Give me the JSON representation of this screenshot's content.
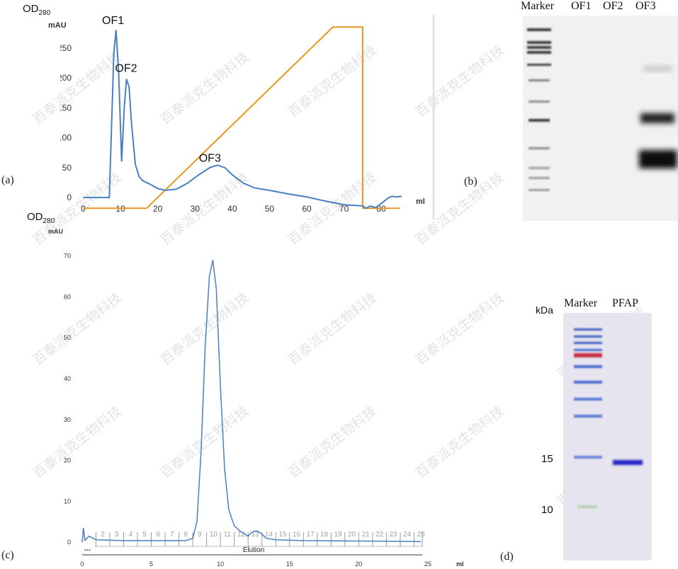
{
  "panel_a": {
    "label": "(a)",
    "yaxis_label_main": "OD",
    "yaxis_label_sub": "280",
    "yaxis_unit": "mAU",
    "xaxis_unit": "ml",
    "peaks": [
      "OF1",
      "OF2",
      "OF3"
    ]
  },
  "panel_b": {
    "label": "(b)",
    "lanes": [
      "Marker",
      "OF1",
      "OF2",
      "OF3"
    ]
  },
  "panel_c": {
    "label": "(c)",
    "yaxis_label_main": "OD",
    "yaxis_label_sub": "280",
    "yaxis_unit": "mAU",
    "xaxis_unit": "ml",
    "elution_label": "Elution",
    "dots_label": "...",
    "fraction_numbers": [
      "2",
      "3",
      "4",
      "5",
      "6",
      "7",
      "8",
      "9",
      "10",
      "11",
      "12",
      "13",
      "14",
      "15",
      "16",
      "17",
      "18",
      "19",
      "20",
      "21",
      "22",
      "23",
      "24",
      "25"
    ]
  },
  "panel_d": {
    "label": "(d)",
    "kda_label": "kDa",
    "lanes": [
      "Marker",
      "PFAP"
    ],
    "markers": [
      "15",
      "10"
    ]
  },
  "watermark": "百泰派克生物科技",
  "chart_data": [
    {
      "type": "line",
      "title": "",
      "xlabel": "ml",
      "ylabel": "OD280 mAU",
      "xlim": [
        -2,
        87
      ],
      "ylim": [
        -20,
        290
      ],
      "xticks": [
        0,
        10,
        20,
        30,
        40,
        50,
        60,
        70,
        80
      ],
      "yticks": [
        0,
        50,
        100,
        150,
        200,
        250
      ],
      "series": [
        {
          "name": "UV absorbance",
          "color": "#4a7fc1",
          "x": [
            0,
            3,
            7,
            7.6,
            8.2,
            8.8,
            9.5,
            10.3,
            11,
            11.6,
            12.3,
            13,
            14,
            15,
            16,
            18,
            20,
            22,
            25,
            28,
            31,
            34,
            36,
            38,
            40,
            43,
            46,
            50,
            55,
            60,
            65,
            70,
            75,
            76,
            77,
            78.5,
            80,
            82,
            83,
            84,
            85.5
          ],
          "y": [
            0,
            0,
            0,
            120,
            240,
            280,
            210,
            60,
            150,
            198,
            185,
            120,
            55,
            35,
            28,
            22,
            15,
            12,
            14,
            24,
            38,
            50,
            54,
            50,
            38,
            24,
            16,
            12,
            6,
            1,
            -6,
            -12,
            -14,
            -18,
            -14,
            -17,
            -10,
            0,
            2,
            1,
            2
          ]
        },
        {
          "name": "Gradient",
          "color": "#e8961e",
          "x": [
            0,
            17,
            67,
            75,
            75,
            85
          ],
          "y": [
            -18,
            -18,
            285,
            285,
            -18,
            -18
          ]
        }
      ],
      "annotations": [
        {
          "text": "OF1",
          "x": 8,
          "y": 290
        },
        {
          "text": "OF2",
          "x": 11.5,
          "y": 210
        },
        {
          "text": "OF3",
          "x": 34,
          "y": 60
        }
      ]
    },
    {
      "type": "line",
      "title": "",
      "xlabel": "ml",
      "ylabel": "OD280 mAU",
      "xlim": [
        -0.2,
        25
      ],
      "ylim": [
        -1,
        72
      ],
      "xticks": [
        0,
        5,
        10,
        15,
        20,
        25
      ],
      "yticks": [
        0,
        10,
        20,
        30,
        40,
        50,
        60,
        70
      ],
      "series": [
        {
          "name": "UV absorbance",
          "color": "#4a7fc1",
          "x": [
            0,
            0.1,
            0.2,
            0.5,
            1,
            3,
            6,
            7.5,
            8,
            8.3,
            8.6,
            8.9,
            9.2,
            9.45,
            9.7,
            10,
            10.3,
            10.6,
            11,
            11.5,
            12,
            12.3,
            12.6,
            12.9,
            13.3,
            14,
            16,
            20,
            24.5
          ],
          "y": [
            0,
            3.5,
            0.5,
            1.5,
            0.6,
            0.4,
            0.4,
            0.4,
            1,
            5,
            22,
            48,
            65,
            69,
            62,
            38,
            18,
            8,
            4,
            2.5,
            1.5,
            2.5,
            2.8,
            2.3,
            1,
            0.6,
            0.4,
            0.3,
            0.2
          ]
        }
      ],
      "annotations": [
        {
          "text": "Elution",
          "x": 12.4,
          "y": -0.5
        }
      ]
    }
  ]
}
